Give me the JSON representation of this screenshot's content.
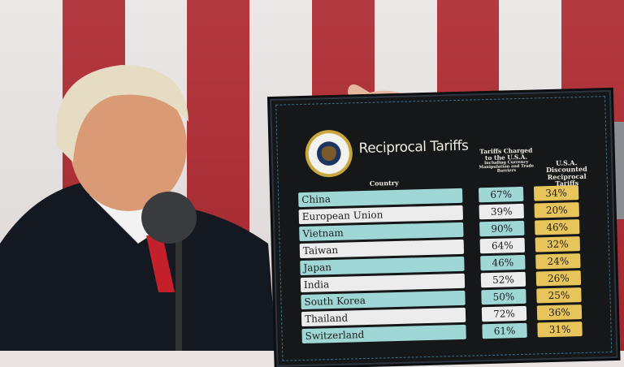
{
  "board": {
    "title": "Reciprocal Tariffs",
    "seal": "presidential-seal",
    "column_headers": {
      "country": "Country",
      "charged": "Tariffs Charged to the U.S.A.",
      "charged_note": "Including Currency Manipulation and Trade Barriers",
      "discounted": "U.S.A. Discounted Reciprocal Tariffs"
    },
    "rows": [
      {
        "country": "China",
        "charged": "67%",
        "discounted": "34%"
      },
      {
        "country": "European Union",
        "charged": "39%",
        "discounted": "20%"
      },
      {
        "country": "Vietnam",
        "charged": "90%",
        "discounted": "46%"
      },
      {
        "country": "Taiwan",
        "charged": "64%",
        "discounted": "32%"
      },
      {
        "country": "Japan",
        "charged": "46%",
        "discounted": "24%"
      },
      {
        "country": "India",
        "charged": "52%",
        "discounted": "26%"
      },
      {
        "country": "South Korea",
        "charged": "50%",
        "discounted": "25%"
      },
      {
        "country": "Thailand",
        "charged": "72%",
        "discounted": "36%"
      },
      {
        "country": "Switzerland",
        "charged": "61%",
        "discounted": "31%"
      }
    ],
    "colors": {
      "teal_row": "#9fd6d6",
      "white_row": "#ececec",
      "gold_cell": "#e8c55a",
      "board": "#151719"
    }
  }
}
